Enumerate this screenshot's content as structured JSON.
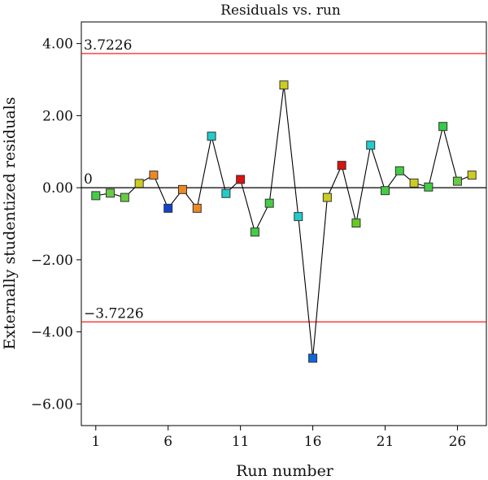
{
  "chart_data": {
    "type": "scatter",
    "title": "Residuals vs. run",
    "xlabel": "Run number",
    "ylabel": "Externally studentized residuals",
    "xlim": [
      0,
      28
    ],
    "ylim": [
      -6.6,
      4.6
    ],
    "xticks": [
      1,
      6,
      11,
      16,
      21,
      26
    ],
    "yticks": [
      4.0,
      2.0,
      0.0,
      -2.0,
      -4.0,
      -6.0
    ],
    "ytick_labels": [
      "4.00",
      "2.00",
      "0.00",
      "-2.00",
      "-4.00",
      "-6.00"
    ],
    "grid": false,
    "reference_lines": [
      {
        "value": 3.7226,
        "label": "3.7226",
        "color": "#ff0000"
      },
      {
        "value": 0,
        "label": "0",
        "color": "#000000"
      },
      {
        "value": -3.7226,
        "label": "-3.7226",
        "color": "#ff0000"
      }
    ],
    "series": [
      {
        "x": [
          1,
          2,
          3,
          4,
          5,
          6,
          7,
          8,
          9,
          10,
          11,
          12,
          13,
          14,
          15,
          16,
          17,
          18,
          19,
          20,
          21,
          22,
          23,
          24,
          25,
          26,
          27
        ],
        "values": [
          -0.22,
          -0.15,
          -0.27,
          0.12,
          0.35,
          -0.57,
          -0.05,
          -0.57,
          1.43,
          -0.16,
          0.23,
          -1.23,
          -0.43,
          2.85,
          -0.8,
          -4.73,
          -0.27,
          0.62,
          -0.98,
          1.18,
          -0.08,
          0.47,
          0.13,
          0.02,
          1.7,
          0.18,
          0.35
        ],
        "colors": [
          "#44cc44",
          "#66cc44",
          "#66cc44",
          "#cccc22",
          "#ee8822",
          "#1144cc",
          "#ee8822",
          "#ee8822",
          "#22cccc",
          "#22cccc",
          "#dd1111",
          "#44cc44",
          "#44cc44",
          "#cccc22",
          "#22cccc",
          "#1166dd",
          "#cccc22",
          "#dd1111",
          "#66cc22",
          "#22cccc",
          "#44cc44",
          "#44cc44",
          "#cccc22",
          "#44cc44",
          "#33cc44",
          "#66cc44",
          "#cccc22"
        ]
      }
    ]
  }
}
